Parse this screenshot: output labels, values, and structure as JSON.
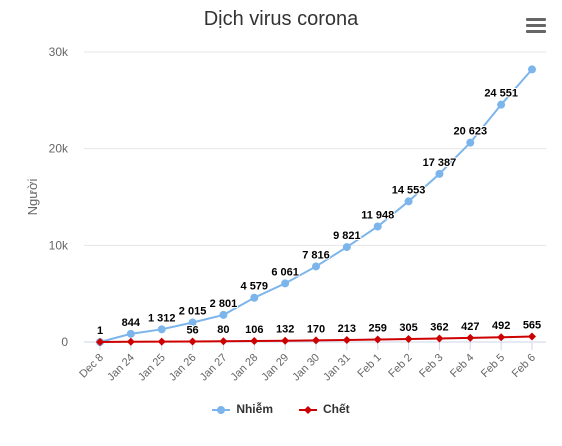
{
  "chart_data": {
    "type": "line",
    "title": "Dịch virus corona",
    "xlabel": "",
    "ylabel": "Người",
    "categories": [
      "Dec 8",
      "Jan 24",
      "Jan 25",
      "Jan 26",
      "Jan 27",
      "Jan 28",
      "Jan 29",
      "Jan 30",
      "Jan 31",
      "Feb 1",
      "Feb 2",
      "Feb 3",
      "Feb 4",
      "Feb 5",
      "Feb 6"
    ],
    "ylim": [
      0,
      30000
    ],
    "yticks": [
      "0",
      "10k",
      "20k",
      "30k"
    ],
    "grid": true,
    "legend_position": "bottom",
    "series": [
      {
        "name": "Nhiễm",
        "color": "#7cb5ec",
        "marker": "circle",
        "values": [
          1,
          844,
          1312,
          2015,
          2801,
          4579,
          6061,
          7816,
          9821,
          11948,
          14553,
          17387,
          20623,
          24551,
          28200
        ],
        "labels": [
          "1",
          "844",
          "1 312",
          "2 015",
          "2 801",
          "4 579",
          "6 061",
          "7 816",
          "9 821",
          "11 948",
          "14 553",
          "17 387",
          "20 623",
          "24 551",
          ""
        ]
      },
      {
        "name": "Chết",
        "color": "#cc0000",
        "marker": "diamond",
        "values": [
          0,
          25,
          41,
          56,
          80,
          106,
          132,
          170,
          213,
          259,
          305,
          362,
          427,
          492,
          565
        ],
        "labels": [
          "",
          "",
          "",
          "56",
          "80",
          "106",
          "132",
          "170",
          "213",
          "259",
          "305",
          "362",
          "427",
          "492",
          "565"
        ]
      }
    ]
  },
  "menu_icon": "hamburger-menu-icon"
}
